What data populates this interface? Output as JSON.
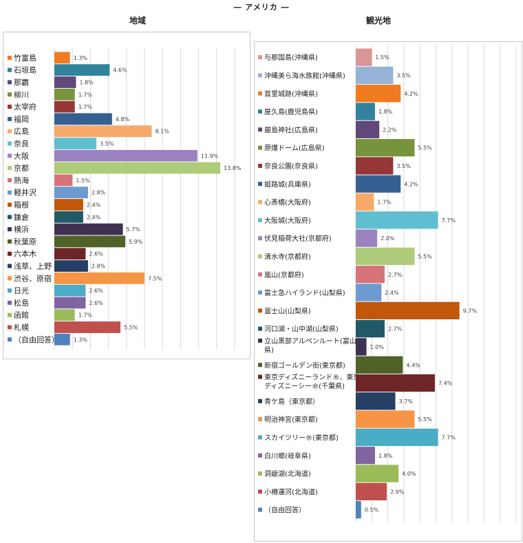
{
  "main_title": "― アメリカ ―",
  "chart_data": [
    {
      "type": "bar",
      "orientation": "horizontal",
      "title": "地域",
      "xlim": [
        0,
        15
      ],
      "grid": true,
      "legend": "left, inline with bars",
      "value_suffix": "%",
      "categories": [
        "竹富島",
        "石垣島",
        "那覇",
        "柳川",
        "太宰府",
        "福岡",
        "広島",
        "奈良",
        "大阪",
        "京都",
        "熱海",
        "軽井沢",
        "箱根",
        "鎌倉",
        "横浜",
        "秋葉原",
        "六本木",
        "浅草、上野",
        "渋谷、原宿",
        "日光",
        "松島",
        "函館",
        "札幌",
        "（自由回答）"
      ],
      "values": [
        1.3,
        4.6,
        1.8,
        1.7,
        1.7,
        4.8,
        8.1,
        3.5,
        11.9,
        13.8,
        1.5,
        2.8,
        2.4,
        2.4,
        5.7,
        5.9,
        2.6,
        2.8,
        7.5,
        2.6,
        2.6,
        1.7,
        5.5,
        1.3
      ],
      "colors": [
        "#F07B20",
        "#31849B",
        "#60497A",
        "#77933C",
        "#953735",
        "#366092",
        "#F8A96A",
        "#5FBFD0",
        "#9B82BF",
        "#AFCC7A",
        "#D6747A",
        "#6D9BD1",
        "#C0570B",
        "#215967",
        "#3F3151",
        "#4F6228",
        "#6E2528",
        "#253F65",
        "#F69545",
        "#4BACC6",
        "#8064A2",
        "#9BBB59",
        "#C0504D",
        "#4F81BD"
      ]
    },
    {
      "type": "bar",
      "orientation": "horizontal",
      "title": "観光地",
      "xlim": [
        0,
        15
      ],
      "grid": true,
      "legend": "left, inline with bars",
      "value_suffix": "%",
      "categories": [
        "与那国島(沖縄県)",
        "沖縄美ら海水族館(沖縄県)",
        "首里城跡(沖縄県)",
        "屋久島(鹿児島県)",
        "厳島神社(広島県)",
        "原爆ドーム(広島県)",
        "奈良公園(奈良県)",
        "姫路城(兵庫県)",
        "心斎橋(大阪府)",
        "大阪城(大阪府)",
        "伏見稲荷大社(京都府)",
        "清水寺(京都府)",
        "嵐山(京都府)",
        "富士急ハイランド(山梨県)",
        "富士山(山梨県)",
        "河口湖・山中湖(山梨県)",
        "立山黒部アルペンルート(富山県)",
        "新宿ゴールデン街(東京都)",
        "東京ディズニーランド®、東京ディズニーシー®(千葉県)",
        "青ケ島（東京都）",
        "明治神宮(東京都)",
        "スカイツリー®(東京都)",
        "白川郷(岐阜県)",
        "洞爺湖(北海道)",
        "小樽運河(北海道)",
        "（自由回答）"
      ],
      "values": [
        1.5,
        3.5,
        4.2,
        1.8,
        2.2,
        5.5,
        3.5,
        4.2,
        1.7,
        7.7,
        2.0,
        5.5,
        2.7,
        2.4,
        9.7,
        2.7,
        1.0,
        4.4,
        7.4,
        3.7,
        5.5,
        7.7,
        1.8,
        4.0,
        2.9,
        0.5
      ],
      "colors": [
        "#D99694",
        "#95B3D7",
        "#F07B20",
        "#31849B",
        "#60497A",
        "#77933C",
        "#953735",
        "#366092",
        "#F8A96A",
        "#5FBFD0",
        "#9B82BF",
        "#AFCC7A",
        "#D6747A",
        "#6D9BD1",
        "#C0570B",
        "#215967",
        "#3F3151",
        "#4F6228",
        "#6E2528",
        "#253F65",
        "#F69545",
        "#4BACC6",
        "#8064A2",
        "#9BBB59",
        "#C0504D",
        "#4F81BD"
      ]
    }
  ]
}
